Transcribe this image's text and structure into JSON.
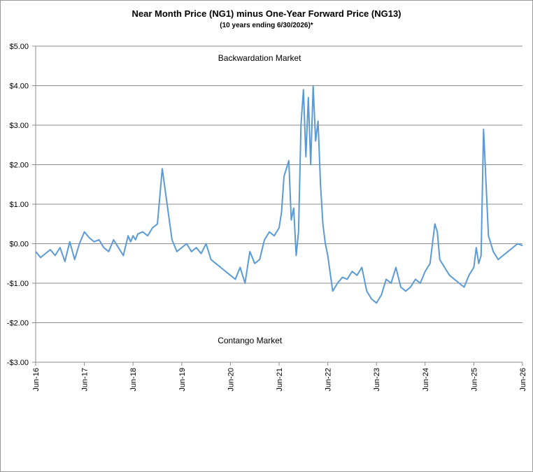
{
  "chart_data": {
    "type": "line",
    "title": "Near Month Price (NG1) minus One-Year Forward Price (NG13)",
    "subtitle": "(10 years ending  6/30/2026)*",
    "ylim": [
      -3,
      5
    ],
    "y_ticks": [
      5,
      4,
      3,
      2,
      1,
      0,
      -1,
      -2,
      -3
    ],
    "y_tick_labels": [
      "$5.00",
      "$4.00",
      "$3.00",
      "$2.00",
      "$1.00",
      "$0.00",
      "-$1.00",
      "-$2.00",
      "-$3.00"
    ],
    "x_tick_labels": [
      "Jun-16",
      "Jun-17",
      "Jun-18",
      "Jun-19",
      "Jun-20",
      "Jun-21",
      "Jun-22",
      "Jun-23",
      "Jun-24",
      "Jun-25",
      "Jun-26"
    ],
    "grid": "horizontal",
    "annotations": [
      {
        "text": "Backwardation Market",
        "x": 2021.1,
        "y": 4.63
      },
      {
        "text": "Contango Market",
        "x": 2020.9,
        "y": -2.52
      }
    ],
    "line_color": "#5b9bd5",
    "series": [
      {
        "x": [
          2016.5,
          2016.6,
          2016.7,
          2016.8,
          2016.9,
          2017.0,
          2017.1,
          2017.2,
          2017.3,
          2017.4,
          2017.5,
          2017.6,
          2017.7,
          2017.8,
          2017.9,
          2018.0,
          2018.1,
          2018.2,
          2018.3,
          2018.4,
          2018.45,
          2018.5,
          2018.55,
          2018.6,
          2018.7,
          2018.8,
          2018.9,
          2019.0,
          2019.1,
          2019.2,
          2019.3,
          2019.4,
          2019.5,
          2019.6,
          2019.7,
          2019.8,
          2019.9,
          2020.0,
          2020.1,
          2020.2,
          2020.3,
          2020.4,
          2020.5,
          2020.6,
          2020.7,
          2020.8,
          2020.9,
          2021.0,
          2021.1,
          2021.2,
          2021.3,
          2021.4,
          2021.5,
          2021.55,
          2021.6,
          2021.7,
          2021.75,
          2021.8,
          2021.85,
          2021.9,
          2021.95,
          2022.0,
          2022.05,
          2022.1,
          2022.15,
          2022.2,
          2022.25,
          2022.3,
          2022.35,
          2022.4,
          2022.45,
          2022.5,
          2022.6,
          2022.7,
          2022.8,
          2022.9,
          2023.0,
          2023.1,
          2023.2,
          2023.3,
          2023.4,
          2023.5,
          2023.6,
          2023.7,
          2023.8,
          2023.9,
          2024.0,
          2024.1,
          2024.2,
          2024.3,
          2024.4,
          2024.5,
          2024.6,
          2024.7,
          2024.75,
          2024.8,
          2024.9,
          2025.0,
          2025.1,
          2025.2,
          2025.3,
          2025.4,
          2025.5,
          2025.55,
          2025.6,
          2025.65,
          2025.7,
          2025.8,
          2025.9,
          2026.0,
          2026.1,
          2026.2,
          2026.3,
          2026.4,
          2026.5
        ],
        "y": [
          -0.2,
          -0.35,
          -0.25,
          -0.15,
          -0.3,
          -0.1,
          -0.45,
          0.05,
          -0.4,
          0.0,
          0.3,
          0.15,
          0.05,
          0.1,
          -0.1,
          -0.2,
          0.1,
          -0.1,
          -0.3,
          0.2,
          0.05,
          0.2,
          0.1,
          0.25,
          0.3,
          0.2,
          0.4,
          0.5,
          1.9,
          1.0,
          0.1,
          -0.2,
          -0.1,
          0.0,
          -0.2,
          -0.1,
          -0.25,
          0.0,
          -0.4,
          -0.5,
          -0.6,
          -0.7,
          -0.8,
          -0.9,
          -0.6,
          -1.0,
          -0.2,
          -0.5,
          -0.4,
          0.1,
          0.3,
          0.2,
          0.4,
          0.8,
          1.7,
          2.1,
          0.6,
          0.9,
          -0.3,
          0.3,
          3.0,
          3.9,
          2.2,
          3.7,
          2.0,
          4.0,
          2.6,
          3.1,
          1.5,
          0.5,
          0.0,
          -0.3,
          -1.2,
          -1.0,
          -0.85,
          -0.9,
          -0.7,
          -0.8,
          -0.6,
          -1.2,
          -1.4,
          -1.5,
          -1.3,
          -0.9,
          -1.0,
          -0.6,
          -1.1,
          -1.2,
          -1.1,
          -0.9,
          -1.0,
          -0.7,
          -0.5,
          0.5,
          0.3,
          -0.4,
          -0.6,
          -0.8,
          -0.9,
          -1.0,
          -1.1,
          -0.8,
          -0.6,
          -0.1,
          -0.5,
          -0.3,
          2.9,
          0.2,
          -0.2,
          -0.4,
          -0.3,
          -0.2,
          -0.1,
          0.0,
          -0.05
        ]
      }
    ]
  }
}
